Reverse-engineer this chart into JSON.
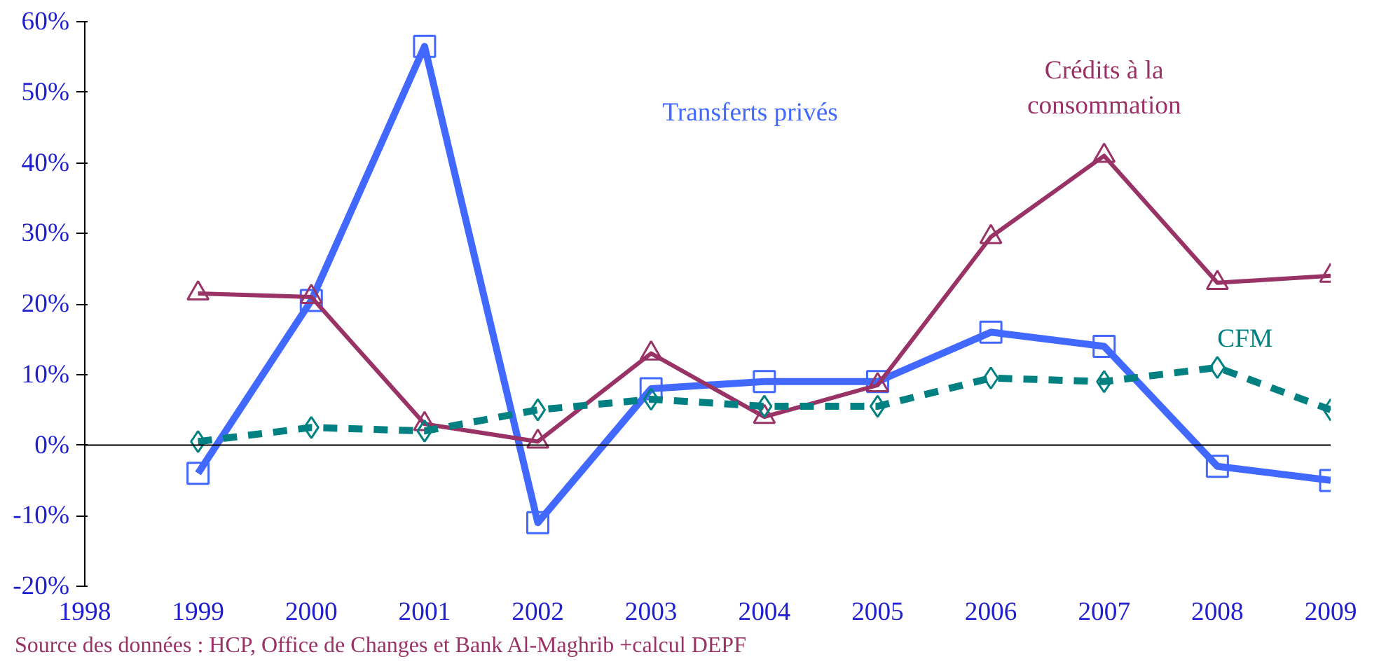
{
  "chart_data": {
    "type": "line",
    "x": [
      1999,
      2000,
      2001,
      2002,
      2003,
      2004,
      2005,
      2006,
      2007,
      2008,
      2009
    ],
    "xlim": [
      1998,
      2009
    ],
    "xticks": [
      1998,
      1999,
      2000,
      2001,
      2002,
      2003,
      2004,
      2005,
      2006,
      2007,
      2008,
      2009
    ],
    "ylim": [
      -20,
      60
    ],
    "yticks": [
      {
        "value": -20,
        "label": "-20%"
      },
      {
        "value": -10,
        "label": "-10%"
      },
      {
        "value": 0,
        "label": "0%"
      },
      {
        "value": 10,
        "label": "10%"
      },
      {
        "value": 20,
        "label": "20%"
      },
      {
        "value": 30,
        "label": "30%"
      },
      {
        "value": 40,
        "label": "40%"
      },
      {
        "value": 50,
        "label": "50%"
      },
      {
        "value": 60,
        "label": "60%"
      }
    ],
    "grid": false,
    "legend": false,
    "ref_lines": [
      {
        "axis": "y",
        "value": 0,
        "label": null,
        "color": "#000000"
      }
    ],
    "series": [
      {
        "name": "Transferts privés",
        "color": "#4169ff",
        "marker": "square",
        "line_style": "solid",
        "values": [
          -4,
          20.5,
          56.5,
          -11,
          8,
          9,
          9,
          16,
          14,
          -3,
          -5
        ]
      },
      {
        "name": "Crédits à la consommation",
        "color": "#993366",
        "marker": "triangle",
        "line_style": "solid",
        "values": [
          21.5,
          21,
          3,
          0.5,
          13,
          4,
          8.5,
          29.5,
          41,
          23,
          24
        ]
      },
      {
        "name": "CFM",
        "color": "#008080",
        "marker": "diamond",
        "line_style": "dashed",
        "values": [
          0.5,
          2.5,
          2,
          5,
          6.5,
          5.5,
          5.5,
          9.5,
          9,
          11,
          5
        ]
      }
    ],
    "annotations": [
      "Source des données : HCP, Office de Changes et Bank Al-Maghrib +calcul DEPF"
    ]
  }
}
